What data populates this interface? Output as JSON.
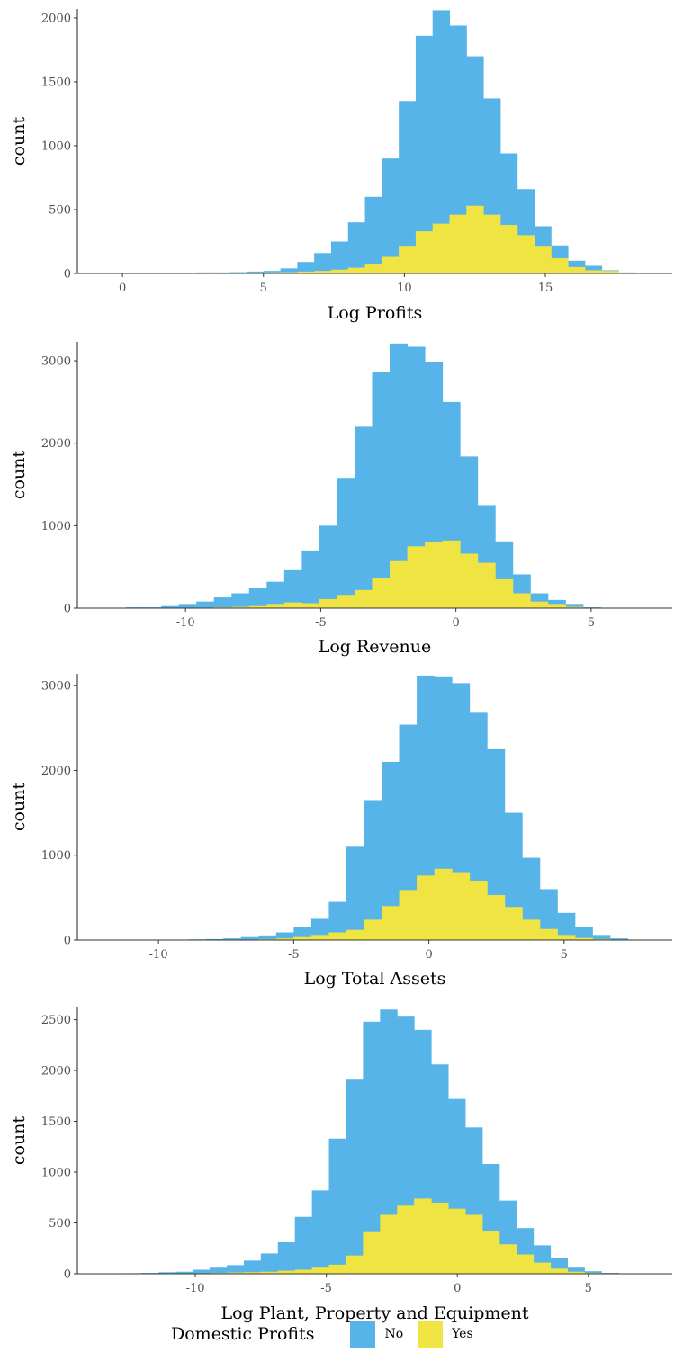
{
  "chart_data": [
    {
      "type": "bar",
      "subtype": "histogram-overlay",
      "xlabel": "Log Profits",
      "ylabel": "count",
      "xlim": [
        -1.6,
        19.5
      ],
      "ylim": [
        0,
        2070
      ],
      "xticks": [
        0,
        5,
        10,
        15
      ],
      "yticks": [
        0,
        500,
        1000,
        1500,
        2000
      ],
      "bin_start": -1.0,
      "bin_width": 0.6,
      "series": [
        {
          "name": "No",
          "values": [
            5,
            5,
            5,
            5,
            5,
            5,
            8,
            8,
            10,
            15,
            20,
            40,
            90,
            160,
            250,
            400,
            600,
            900,
            1350,
            1860,
            2060,
            1940,
            1700,
            1370,
            940,
            660,
            370,
            220,
            100,
            60,
            25,
            8,
            4,
            2
          ]
        },
        {
          "name": "Yes",
          "values": [
            2,
            2,
            2,
            2,
            2,
            2,
            3,
            3,
            4,
            6,
            8,
            10,
            15,
            20,
            30,
            45,
            70,
            130,
            210,
            330,
            390,
            460,
            530,
            460,
            380,
            300,
            210,
            120,
            50,
            25,
            20,
            6,
            3,
            1
          ]
        }
      ]
    },
    {
      "type": "bar",
      "subtype": "histogram-overlay",
      "xlabel": "Log Revenue",
      "ylabel": "count",
      "xlim": [
        -14,
        8
      ],
      "ylim": [
        0,
        3230
      ],
      "xticks": [
        -10,
        -5,
        0,
        5
      ],
      "yticks": [
        0,
        1000,
        2000,
        3000
      ],
      "bin_start": -12.2,
      "bin_width": 0.65,
      "series": [
        {
          "name": "No",
          "values": [
            10,
            10,
            25,
            40,
            80,
            130,
            180,
            240,
            320,
            460,
            700,
            1000,
            1580,
            2200,
            2860,
            3210,
            3170,
            2990,
            2500,
            1840,
            1250,
            810,
            410,
            180,
            100,
            40,
            10
          ]
        },
        {
          "name": "Yes",
          "values": [
            1,
            1,
            2,
            4,
            6,
            10,
            15,
            25,
            40,
            70,
            60,
            110,
            150,
            220,
            370,
            570,
            750,
            800,
            820,
            660,
            550,
            350,
            180,
            80,
            40,
            15,
            5
          ]
        }
      ]
    },
    {
      "type": "bar",
      "subtype": "histogram-overlay",
      "xlabel": "Log Total Assets",
      "ylabel": "count",
      "xlim": [
        -13,
        9
      ],
      "ylim": [
        0,
        3140
      ],
      "xticks": [
        -10,
        -5,
        0,
        5
      ],
      "yticks": [
        0,
        1000,
        2000,
        3000
      ],
      "bin_start": -10.2,
      "bin_width": 0.65,
      "series": [
        {
          "name": "No",
          "values": [
            4,
            4,
            8,
            12,
            20,
            35,
            55,
            90,
            150,
            250,
            450,
            1100,
            1650,
            2100,
            2540,
            3120,
            3100,
            3030,
            2680,
            2250,
            1500,
            970,
            600,
            320,
            150,
            60,
            20,
            5
          ]
        },
        {
          "name": "Yes",
          "values": [
            1,
            1,
            2,
            3,
            4,
            6,
            10,
            20,
            35,
            60,
            90,
            120,
            240,
            400,
            590,
            760,
            840,
            800,
            700,
            530,
            390,
            240,
            130,
            60,
            25,
            10,
            4,
            1
          ]
        }
      ]
    },
    {
      "type": "bar",
      "subtype": "histogram-overlay",
      "xlabel": "Log Plant, Property and Equipment",
      "ylabel": "count",
      "xlim": [
        -14.5,
        8.2
      ],
      "ylim": [
        0,
        2620
      ],
      "xticks": [
        -10,
        -5,
        0,
        5
      ],
      "yticks": [
        0,
        500,
        1000,
        1500,
        2000,
        2500
      ],
      "bin_start": -12.7,
      "bin_width": 0.65,
      "series": [
        {
          "name": "No",
          "values": [
            5,
            8,
            15,
            20,
            40,
            60,
            85,
            130,
            200,
            310,
            560,
            820,
            1330,
            1910,
            2480,
            2600,
            2530,
            2400,
            2060,
            1720,
            1440,
            1080,
            720,
            450,
            280,
            150,
            60,
            25,
            8
          ]
        },
        {
          "name": "Yes",
          "values": [
            1,
            1,
            2,
            3,
            5,
            8,
            12,
            15,
            20,
            30,
            40,
            60,
            90,
            180,
            410,
            580,
            670,
            740,
            700,
            640,
            580,
            420,
            290,
            190,
            110,
            50,
            20,
            8,
            3
          ]
        }
      ]
    }
  ],
  "legend": {
    "title": "Domestic Profits",
    "position": "bottom",
    "items": [
      {
        "label": "No",
        "color": "#56B4E9"
      },
      {
        "label": "Yes",
        "color": "#F0E442"
      }
    ]
  },
  "colors": {
    "no": "#56B4E9",
    "yes": "#F0E442",
    "overlap_edge": "#7cc36a",
    "axis": "#333333"
  }
}
